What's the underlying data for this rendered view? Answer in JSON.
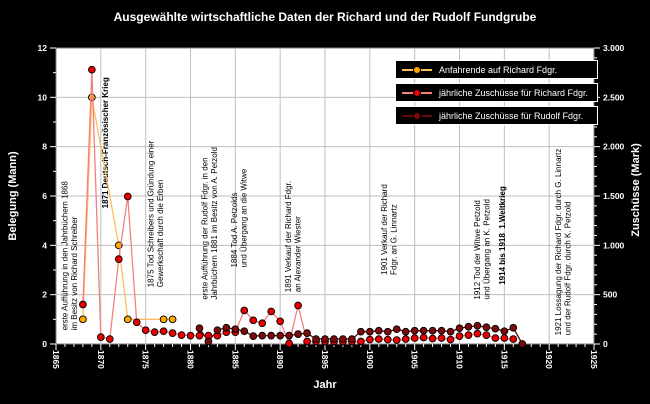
{
  "chart_data": {
    "type": "line",
    "title": "Ausgewählte wirtschaftliche Daten der Richard und der Rudolf Fundgrube",
    "xlabel": "Jahr",
    "ylabel_left": "Belegung (Mann)",
    "ylabel_right": "Zuschüsse (Mark)",
    "background_color": "#000000",
    "plot_background": "#FFFFFF",
    "grid_color": "#BEBEBE",
    "x_axis": {
      "min": 1865,
      "max": 1925,
      "major_step": 5,
      "minor_step": 1,
      "tick_labels": [
        "1865",
        "1870",
        "1875",
        "1880",
        "1885",
        "1890",
        "1895",
        "1900",
        "1905",
        "1910",
        "1915",
        "1920",
        "1925"
      ]
    },
    "y_left": {
      "min": 0,
      "max": 12,
      "major_step": 2,
      "minor_step": 1,
      "tick_labels": [
        "0",
        "2",
        "4",
        "6",
        "8",
        "10",
        "12"
      ]
    },
    "y_right": {
      "min": 0,
      "max": 3000,
      "major_step": 500,
      "minor_step": 100,
      "tick_labels": [
        "0",
        "500",
        "1.000",
        "1.500",
        "2.000",
        "2.500",
        "3.000"
      ]
    },
    "grid": {
      "vertical_years": [
        1870,
        1875,
        1880,
        1885,
        1890,
        1895,
        1900,
        1905,
        1910,
        1915,
        1920
      ],
      "horizontal_left_values": [
        2,
        4,
        6,
        8,
        10
      ]
    },
    "series": [
      {
        "name": "Anfahrende auf Richard Fdgr.",
        "axis": "left",
        "marker_color": "#FFA800",
        "line_color": "#FFBE5C",
        "points": [
          [
            1868,
            1
          ],
          [
            1869,
            10
          ],
          [
            1872,
            4
          ],
          [
            1873,
            1
          ],
          [
            1877,
            1
          ],
          [
            1878,
            1
          ]
        ]
      },
      {
        "name": "jährliche Zuschüsse für Richard Fdgr.",
        "axis": "right",
        "marker_color": "#E80000",
        "line_color": "#F28080",
        "points": [
          [
            1868,
            400
          ],
          [
            1869,
            2780
          ],
          [
            1870,
            70
          ],
          [
            1871,
            50
          ],
          [
            1872,
            860
          ],
          [
            1873,
            1495
          ],
          [
            1874,
            220
          ],
          [
            1875,
            140
          ],
          [
            1876,
            120
          ],
          [
            1877,
            130
          ],
          [
            1878,
            110
          ],
          [
            1879,
            90
          ],
          [
            1880,
            85
          ],
          [
            1881,
            85
          ],
          [
            1882,
            85
          ],
          [
            1883,
            85
          ],
          [
            1884,
            120
          ],
          [
            1885,
            120
          ],
          [
            1886,
            340
          ],
          [
            1887,
            240
          ],
          [
            1888,
            210
          ],
          [
            1889,
            330
          ],
          [
            1890,
            230
          ],
          [
            1891,
            5
          ],
          [
            1892,
            390
          ],
          [
            1893,
            25
          ],
          [
            1894,
            25
          ],
          [
            1895,
            25
          ],
          [
            1896,
            25
          ],
          [
            1897,
            25
          ],
          [
            1898,
            25
          ],
          [
            1899,
            25
          ],
          [
            1900,
            45
          ],
          [
            1901,
            50
          ],
          [
            1902,
            45
          ],
          [
            1903,
            40
          ],
          [
            1904,
            50
          ],
          [
            1905,
            60
          ],
          [
            1906,
            65
          ],
          [
            1907,
            55
          ],
          [
            1908,
            60
          ],
          [
            1909,
            45
          ],
          [
            1910,
            80
          ],
          [
            1911,
            90
          ],
          [
            1912,
            105
          ],
          [
            1913,
            90
          ],
          [
            1914,
            60
          ],
          [
            1915,
            60
          ],
          [
            1916,
            50
          ]
        ]
      },
      {
        "name": "jährliche Zuschüsse für Rudolf Fdgr.",
        "axis": "right",
        "marker_color": "#7B0B0B",
        "line_color": "#5E0A0A",
        "points": [
          [
            1881,
            160
          ],
          [
            1882,
            25
          ],
          [
            1883,
            140
          ],
          [
            1884,
            165
          ],
          [
            1885,
            150
          ],
          [
            1886,
            130
          ],
          [
            1887,
            80
          ],
          [
            1888,
            85
          ],
          [
            1889,
            85
          ],
          [
            1890,
            85
          ],
          [
            1891,
            85
          ],
          [
            1892,
            100
          ],
          [
            1893,
            110
          ],
          [
            1894,
            50
          ],
          [
            1895,
            50
          ],
          [
            1896,
            50
          ],
          [
            1897,
            50
          ],
          [
            1898,
            50
          ],
          [
            1899,
            125
          ],
          [
            1900,
            125
          ],
          [
            1901,
            135
          ],
          [
            1902,
            125
          ],
          [
            1903,
            150
          ],
          [
            1904,
            125
          ],
          [
            1905,
            135
          ],
          [
            1906,
            135
          ],
          [
            1907,
            135
          ],
          [
            1908,
            135
          ],
          [
            1909,
            125
          ],
          [
            1910,
            160
          ],
          [
            1911,
            175
          ],
          [
            1912,
            185
          ],
          [
            1913,
            170
          ],
          [
            1914,
            155
          ],
          [
            1915,
            130
          ],
          [
            1916,
            165
          ],
          [
            1917,
            0
          ]
        ]
      }
    ],
    "annotations": [
      {
        "x_year": 1866.3,
        "y_left_bottom": 0.55,
        "bold": false,
        "lines": [
          "erste Aufführung in den Jahrbüchern 1868",
          "im Besitz von Richard Schreiber"
        ]
      },
      {
        "x_year": 1870.8,
        "y_left_bottom": 5.5,
        "bold": true,
        "lines": [
          "1871 Deutsch-Französischer Krieg"
        ]
      },
      {
        "x_year": 1875.9,
        "y_left_bottom": 2.3,
        "bold": false,
        "lines": [
          "1875 Tod Schreibers und Gründung einer",
          "Gewerkschaft durch die Erben"
        ]
      },
      {
        "x_year": 1881.9,
        "y_left_bottom": 1.8,
        "bold": false,
        "lines": [
          "erste Aufführung der Rudolf Fdgr. in den",
          "Jahrbüchern 1881 im Besitz von A. Petzold"
        ]
      },
      {
        "x_year": 1885.2,
        "y_left_bottom": 3.1,
        "bold": false,
        "lines": [
          "1884 Tod A. Petzolds",
          "und Übergang an die Witwe"
        ]
      },
      {
        "x_year": 1891.2,
        "y_left_bottom": 2.1,
        "bold": false,
        "lines": [
          "1891 Verkauf der Richard Fdgr.",
          "an Alexander Wiester"
        ]
      },
      {
        "x_year": 1901.9,
        "y_left_bottom": 2.8,
        "bold": false,
        "lines": [
          "1901 Verkauf der Richard",
          "Fdgr. an G. Linnartz"
        ]
      },
      {
        "x_year": 1912.3,
        "y_left_bottom": 1.8,
        "bold": false,
        "lines": [
          "1912 Tod der Witwe Petzold",
          "und Übergang an K. Petzold"
        ]
      },
      {
        "x_year": 1915.1,
        "y_left_bottom": 2.4,
        "bold": true,
        "lines": [
          "1914 bis 1918  1.Weltkrieg"
        ]
      },
      {
        "x_year": 1921.3,
        "y_left_bottom": 0.35,
        "bold": false,
        "lines": [
          "1921 Lossagung der Richard Fdgr. durch G. Linnartz",
          "und der Rudolf Fdgr. durch K. Petzold"
        ]
      }
    ]
  },
  "legend": {
    "items": [
      {
        "label": "Anfahrende auf Richard Fdgr."
      },
      {
        "label": "jährliche Zuschüsse für Richard Fdgr."
      },
      {
        "label": "jährliche Zuschüsse für Rudolf Fdgr."
      }
    ]
  }
}
